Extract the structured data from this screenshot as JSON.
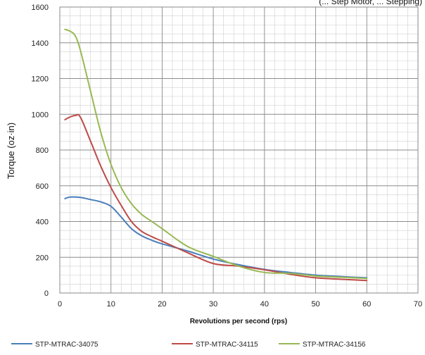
{
  "chart_data": {
    "type": "line",
    "title": "(... Step Motor, ... Stepping)",
    "xlabel": "Revolutions per second (rps)",
    "ylabel": "Torque (oz·in)",
    "xlim": [
      0,
      70
    ],
    "ylim": [
      0,
      1600
    ],
    "x_major_ticks": [
      0,
      10,
      20,
      30,
      40,
      50,
      60,
      70
    ],
    "y_major_ticks": [
      0,
      200,
      400,
      600,
      800,
      1000,
      1200,
      1400,
      1600
    ],
    "x_minor_step": 2,
    "y_minor_step": 50,
    "grid": true,
    "legend_position": "bottom",
    "series": [
      {
        "name": "STP-MTRAC-34075",
        "color": "#4a7ebb",
        "points": [
          [
            1,
            528
          ],
          [
            2,
            537
          ],
          [
            4,
            535
          ],
          [
            6,
            523
          ],
          [
            8,
            510
          ],
          [
            10,
            485
          ],
          [
            12,
            425
          ],
          [
            14,
            360
          ],
          [
            16,
            320
          ],
          [
            18,
            295
          ],
          [
            20,
            275
          ],
          [
            25,
            235
          ],
          [
            30,
            190
          ],
          [
            35,
            158
          ],
          [
            40,
            132
          ],
          [
            45,
            115
          ],
          [
            50,
            100
          ],
          [
            55,
            92
          ],
          [
            60,
            85
          ]
        ]
      },
      {
        "name": "STP-MTRAC-34115",
        "color": "#be4b48",
        "points": [
          [
            1,
            970
          ],
          [
            2,
            985
          ],
          [
            3,
            993
          ],
          [
            4,
            985
          ],
          [
            6,
            850
          ],
          [
            8,
            710
          ],
          [
            10,
            590
          ],
          [
            12,
            490
          ],
          [
            14,
            400
          ],
          [
            16,
            345
          ],
          [
            18,
            315
          ],
          [
            20,
            290
          ],
          [
            25,
            225
          ],
          [
            30,
            165
          ],
          [
            35,
            150
          ],
          [
            40,
            130
          ],
          [
            45,
            105
          ],
          [
            50,
            85
          ],
          [
            55,
            77
          ],
          [
            60,
            70
          ]
        ]
      },
      {
        "name": "STP-MTRAC-34156",
        "color": "#98b954",
        "points": [
          [
            1,
            1475
          ],
          [
            2,
            1465
          ],
          [
            3,
            1440
          ],
          [
            4,
            1360
          ],
          [
            6,
            1130
          ],
          [
            8,
            900
          ],
          [
            10,
            720
          ],
          [
            12,
            590
          ],
          [
            14,
            500
          ],
          [
            16,
            440
          ],
          [
            18,
            400
          ],
          [
            20,
            360
          ],
          [
            25,
            260
          ],
          [
            30,
            205
          ],
          [
            35,
            150
          ],
          [
            40,
            115
          ],
          [
            45,
            110
          ],
          [
            50,
            95
          ],
          [
            55,
            88
          ],
          [
            60,
            82
          ]
        ]
      }
    ]
  }
}
